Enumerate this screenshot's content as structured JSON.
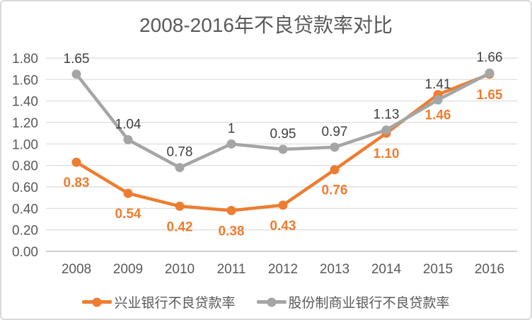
{
  "chart_data": {
    "type": "line",
    "title": "2008-2016年不良贷款率对比",
    "categories": [
      "2008",
      "2009",
      "2010",
      "2011",
      "2012",
      "2013",
      "2014",
      "2015",
      "2016"
    ],
    "series": [
      {
        "name": "兴业银行不良贷款率",
        "color": "#ED7D31",
        "values": [
          0.83,
          0.54,
          0.42,
          0.38,
          0.43,
          0.76,
          1.1,
          1.46,
          1.65
        ],
        "labels": [
          "0.83",
          "0.54",
          "0.42",
          "0.38",
          "0.43",
          "0.76",
          "1.10",
          "1.46",
          "1.65"
        ],
        "label_color": "#ED7D31",
        "label_bold": true,
        "label_position": "below"
      },
      {
        "name": "股份制商业银行不良贷款率",
        "color": "#A5A5A5",
        "values": [
          1.65,
          1.04,
          0.78,
          1,
          0.95,
          0.97,
          1.13,
          1.41,
          1.66
        ],
        "labels": [
          "1.65",
          "1.04",
          "0.78",
          "1",
          "0.95",
          "0.97",
          "1.13",
          "1.41",
          "1.66"
        ],
        "label_color": "#404040",
        "label_bold": false,
        "label_position": "above"
      }
    ],
    "ylim": [
      0,
      1.8
    ],
    "yticks": [
      {
        "value": 0.0,
        "label": "0.00"
      },
      {
        "value": 0.2,
        "label": "0.20"
      },
      {
        "value": 0.4,
        "label": "0.40"
      },
      {
        "value": 0.6,
        "label": "0.60"
      },
      {
        "value": 0.8,
        "label": "0.80"
      },
      {
        "value": 1.0,
        "label": "1.00"
      },
      {
        "value": 1.2,
        "label": "1.20"
      },
      {
        "value": 1.4,
        "label": "1.40"
      },
      {
        "value": 1.6,
        "label": "1.60"
      },
      {
        "value": 1.8,
        "label": "1.80"
      }
    ],
    "grid": true,
    "legend_position": "bottom",
    "colors": {
      "gridline": "#D9D9D9",
      "axis_line": "#BFBFBF",
      "axis_text": "#595959",
      "title_text": "#595959",
      "border": "#D9D9D9",
      "background": "#FFFFFF"
    }
  }
}
